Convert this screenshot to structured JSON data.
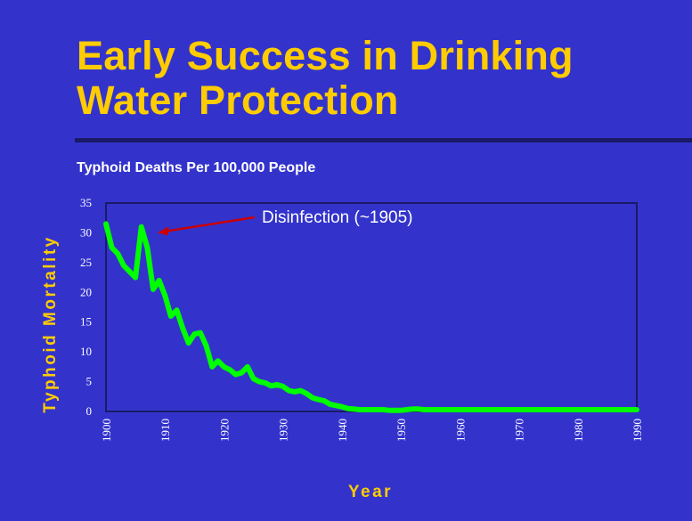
{
  "slide": {
    "title_line1": "Early Success in Drinking",
    "title_line2": "Water Protection",
    "subtitle": "Typhoid Deaths Per 100,000 People"
  },
  "colors": {
    "background": "#3333cc",
    "title": "#ffcc00",
    "line": "#00ff00",
    "arrow": "#cc0000",
    "plot_border": "#1a1a66"
  },
  "chart_data": {
    "type": "line",
    "title": "Typhoid Deaths Per 100,000 People",
    "xlabel": "Year",
    "ylabel": "Typhoid Mortality",
    "xlim": [
      1900,
      1990
    ],
    "ylim": [
      0,
      35
    ],
    "xticks": [
      1900,
      1910,
      1920,
      1930,
      1940,
      1950,
      1960,
      1970,
      1980,
      1990
    ],
    "yticks": [
      0,
      5,
      10,
      15,
      20,
      25,
      30,
      35
    ],
    "grid": false,
    "series": [
      {
        "x": [
          1900,
          1901,
          1902,
          1903,
          1904,
          1905,
          1906,
          1907,
          1908,
          1909,
          1910,
          1911,
          1912,
          1913,
          1914,
          1915,
          1916,
          1917,
          1918,
          1919,
          1920,
          1921,
          1922,
          1923,
          1924,
          1925,
          1926,
          1927,
          1928,
          1929,
          1930,
          1931,
          1932,
          1933,
          1934,
          1935,
          1936,
          1937,
          1938,
          1939,
          1940,
          1941,
          1942,
          1943,
          1944,
          1945,
          1946,
          1947,
          1948,
          1949,
          1950,
          1951,
          1952,
          1953,
          1954,
          1955,
          1956,
          1957,
          1958,
          1959,
          1960,
          1962,
          1965,
          1970,
          1975,
          1980,
          1985,
          1990
        ],
        "values": [
          31.5,
          27.5,
          26.5,
          24.5,
          23.5,
          22.5,
          31,
          27.5,
          20.5,
          22,
          19.5,
          16,
          17,
          14,
          11.5,
          13,
          13.2,
          11,
          7.5,
          8.5,
          7.5,
          7,
          6.2,
          6.5,
          7.5,
          5.5,
          5,
          4.8,
          4.3,
          4.5,
          4.2,
          3.5,
          3.3,
          3.5,
          3,
          2.3,
          2,
          1.8,
          1.2,
          1,
          0.8,
          0.5,
          0.4,
          0.3,
          0.3,
          0.3,
          0.3,
          0.3,
          0.2,
          0.2,
          0.2,
          0.3,
          0.4,
          0.4,
          0.3,
          0.3,
          0.3,
          0.3,
          0.3,
          0.3,
          0.3,
          0.3,
          0.3,
          0.3,
          0.3,
          0.3,
          0.3,
          0.3
        ]
      }
    ],
    "annotations": [
      {
        "text": "Disinfection (~1905)",
        "x": 1909,
        "y": 30
      }
    ]
  }
}
